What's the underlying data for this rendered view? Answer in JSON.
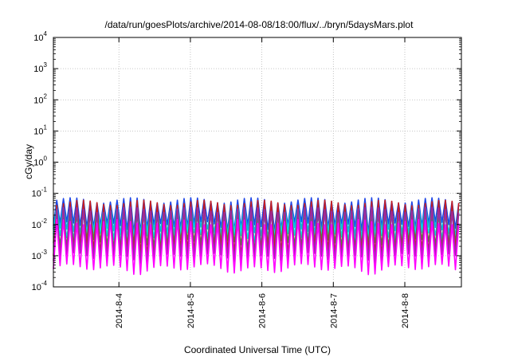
{
  "chart_data": {
    "type": "line",
    "title": "/data/run/goesPlots/archive/2014-08-08/18:00/flux/../bryn/5daysMars.plot",
    "xlabel": "Coordinated Universal Time (UTC)",
    "ylabel": "cGy/day",
    "yscale": "log",
    "ylim": [
      0.0001,
      10000
    ],
    "xlim": [
      "2014-08-03T02:00",
      "2014-08-08T19:00"
    ],
    "grid": true,
    "y_ticks": [
      {
        "value": 0.0001,
        "base": "10",
        "exp": "-4"
      },
      {
        "value": 0.001,
        "base": "10",
        "exp": "-3"
      },
      {
        "value": 0.01,
        "base": "10",
        "exp": "-2"
      },
      {
        "value": 0.1,
        "base": "10",
        "exp": "-1"
      },
      {
        "value": 1,
        "base": "10",
        "exp": "0"
      },
      {
        "value": 10,
        "base": "10",
        "exp": "1"
      },
      {
        "value": 100,
        "base": "10",
        "exp": "2"
      },
      {
        "value": 1000,
        "base": "10",
        "exp": "3"
      },
      {
        "value": 10000,
        "base": "10",
        "exp": "4"
      }
    ],
    "x_ticks": [
      {
        "value": "2014-08-04T00:00",
        "label": "2014-8-4"
      },
      {
        "value": "2014-08-05T00:00",
        "label": "2014-8-5"
      },
      {
        "value": "2014-08-06T00:00",
        "label": "2014-8-6"
      },
      {
        "value": "2014-08-07T00:00",
        "label": "2014-8-7"
      },
      {
        "value": "2014-08-08T00:00",
        "label": "2014-8-8"
      }
    ],
    "series_pattern": {
      "cycle_hours": 2.25,
      "start": "2014-08-03T02:00",
      "end": "2014-08-08T19:00"
    },
    "series": [
      {
        "color": "#1e46e6",
        "peak": 0.06,
        "trough": 0.009
      },
      {
        "color": "#00b4e6",
        "peak": 0.035,
        "trough": 0.006
      },
      {
        "color": "#00e6e6",
        "peak": 0.025,
        "trough": 0.004
      },
      {
        "color": "#2aa84a",
        "peak": 0.02,
        "trough": 0.0025
      },
      {
        "color": "#c81e1e",
        "peak": 0.05,
        "trough": 0.0012
      },
      {
        "color": "#9b2aa8",
        "peak": 0.03,
        "trough": 0.0009
      },
      {
        "color": "#ff00ff",
        "peak": 0.012,
        "trough": 0.0004
      }
    ]
  }
}
